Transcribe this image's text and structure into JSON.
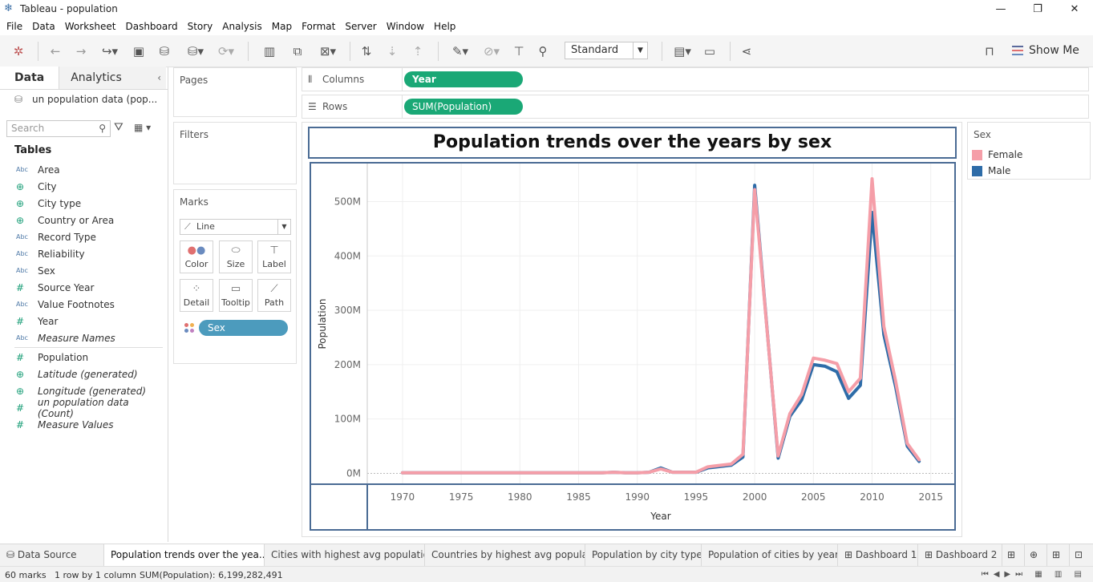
{
  "window": {
    "title": "Tableau - population",
    "minimize": "—",
    "restore": "❐",
    "close": "✕"
  },
  "menu": [
    "File",
    "Data",
    "Worksheet",
    "Dashboard",
    "Story",
    "Analysis",
    "Map",
    "Format",
    "Server",
    "Window",
    "Help"
  ],
  "toolbar": {
    "fit_select": "Standard",
    "show_me": "Show Me"
  },
  "left_panel": {
    "tab_data": "Data",
    "tab_analytics": "Analytics",
    "datasource": "un population data (pop...",
    "search_placeholder": "Search",
    "tables_heading": "Tables",
    "dimensions": [
      {
        "type": "Abc",
        "name": "Area"
      },
      {
        "type": "globe",
        "name": "City"
      },
      {
        "type": "globe",
        "name": "City type"
      },
      {
        "type": "globe",
        "name": "Country or Area"
      },
      {
        "type": "Abc",
        "name": "Record Type"
      },
      {
        "type": "Abc",
        "name": "Reliability"
      },
      {
        "type": "Abc",
        "name": "Sex"
      },
      {
        "type": "#",
        "name": "Source Year"
      },
      {
        "type": "Abc",
        "name": "Value Footnotes"
      },
      {
        "type": "#",
        "name": "Year"
      },
      {
        "type": "Abc",
        "name": "Measure Names"
      }
    ],
    "measures": [
      {
        "type": "#",
        "name": "Population"
      },
      {
        "type": "globe",
        "name": "Latitude (generated)"
      },
      {
        "type": "globe",
        "name": "Longitude (generated)"
      },
      {
        "type": "#",
        "name": "un population data (Count)"
      },
      {
        "type": "#",
        "name": "Measure Values"
      }
    ]
  },
  "shelves": {
    "pages": "Pages",
    "filters": "Filters",
    "marks": "Marks",
    "mark_type": "Line",
    "mark_cards": [
      "Color",
      "Size",
      "Label",
      "Detail",
      "Tooltip",
      "Path"
    ],
    "mark_pill": "Sex",
    "columns_label": "Columns",
    "columns_pill": "Year",
    "rows_label": "Rows",
    "rows_pill": "SUM(Population)"
  },
  "legend": {
    "title": "Sex",
    "items": [
      {
        "label": "Female",
        "color": "#f59ea8"
      },
      {
        "label": "Male",
        "color": "#2e6ca8"
      }
    ]
  },
  "sheet_tabs": [
    "Data Source",
    "Population trends over the yea...",
    "Cities with highest avg population",
    "Countries by highest avg popula...",
    "Population by city type",
    "Population of cities by year",
    "Dashboard 1",
    "Dashboard 2"
  ],
  "status": {
    "marks": "60 marks",
    "rows_cols": "1 row by 1 column",
    "sum": "SUM(Population): 6,199,282,491"
  },
  "chart_data": {
    "type": "line",
    "title": "Population trends over the years by sex",
    "xlabel": "Year",
    "ylabel": "Population",
    "xlim": [
      1967,
      2017
    ],
    "ylim": [
      -20,
      570
    ],
    "x_ticks": [
      1970,
      1975,
      1980,
      1985,
      1990,
      1995,
      2000,
      2005,
      2010,
      2015
    ],
    "y_ticks": [
      0,
      100,
      200,
      300,
      400,
      500
    ],
    "y_tick_labels": [
      "0M",
      "100M",
      "200M",
      "300M",
      "400M",
      "500M"
    ],
    "series": [
      {
        "name": "Male",
        "color": "#2e6ca8",
        "x": [
          1970,
          1975,
          1980,
          1985,
          1987,
          1988,
          1989,
          1990,
          1991,
          1992,
          1993,
          1994,
          1995,
          1996,
          1998,
          1999,
          2000,
          2002,
          2003,
          2004,
          2005,
          2006,
          2007,
          2008,
          2009,
          2010,
          2011,
          2012,
          2013,
          2014
        ],
        "values": [
          1,
          1,
          1,
          1,
          1,
          2,
          1,
          1,
          2,
          10,
          2,
          2,
          2,
          10,
          15,
          30,
          530,
          28,
          105,
          135,
          200,
          197,
          187,
          138,
          162,
          480,
          255,
          160,
          50,
          22
        ]
      },
      {
        "name": "Female",
        "color": "#f59ea8",
        "x": [
          1970,
          1975,
          1980,
          1985,
          1987,
          1988,
          1989,
          1990,
          1991,
          1992,
          1993,
          1994,
          1995,
          1996,
          1998,
          1999,
          2000,
          2002,
          2003,
          2004,
          2005,
          2006,
          2007,
          2008,
          2009,
          2010,
          2011,
          2012,
          2013,
          2014
        ],
        "values": [
          1,
          1,
          1,
          1,
          1,
          2,
          1,
          1,
          2,
          8,
          2,
          2,
          2,
          12,
          17,
          35,
          522,
          32,
          110,
          145,
          212,
          208,
          202,
          150,
          175,
          542,
          270,
          170,
          55,
          25
        ]
      }
    ]
  }
}
